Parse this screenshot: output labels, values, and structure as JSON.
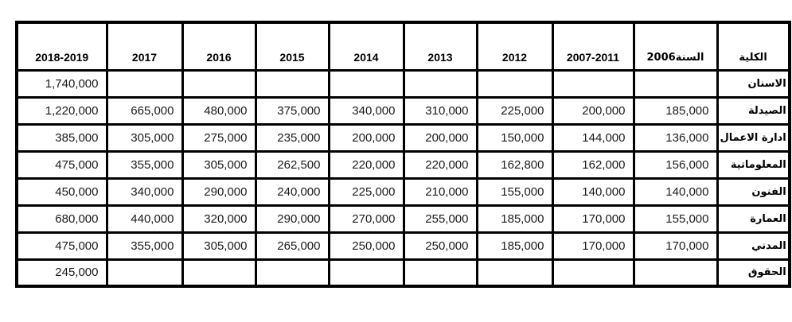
{
  "table": {
    "description_columns_note": "columns listed left-to-right as rendered",
    "header": [
      {
        "label": "2018-2019",
        "rtl": false
      },
      {
        "label": "2017",
        "rtl": false
      },
      {
        "label": "2016",
        "rtl": false
      },
      {
        "label": "2015",
        "rtl": false
      },
      {
        "label": "2014",
        "rtl": false
      },
      {
        "label": "2013",
        "rtl": false
      },
      {
        "label": "2012",
        "rtl": false
      },
      {
        "label": "2007-2011",
        "rtl": false
      },
      {
        "label": "السنة2006",
        "rtl": true
      },
      {
        "label": "الكلية",
        "rtl": true
      }
    ],
    "rows": [
      {
        "college": "الاسنان",
        "values": [
          "1,740,000",
          "",
          "",
          "",
          "",
          "",
          "",
          "",
          ""
        ]
      },
      {
        "college": "الصيدلة",
        "values": [
          "1,220,000",
          "665,000",
          "480,000",
          "375,000",
          "340,000",
          "310,000",
          "225,000",
          "200,000",
          "185,000"
        ]
      },
      {
        "college": "ادارة الاعمال",
        "values": [
          "385,000",
          "305,000",
          "275,000",
          "235,000",
          "200,000",
          "200,000",
          "150,000",
          "144,000",
          "136,000"
        ]
      },
      {
        "college": "المعلوماتية",
        "values": [
          "475,000",
          "355,000",
          "305,000",
          "262,500",
          "220,000",
          "220,000",
          "162,800",
          "162,000",
          "156,000"
        ]
      },
      {
        "college": "الفنون",
        "values": [
          "450,000",
          "340,000",
          "290,000",
          "240,000",
          "225,000",
          "210,000",
          "155,000",
          "140,000",
          "140,000"
        ]
      },
      {
        "college": "العمارة",
        "values": [
          "680,000",
          "440,000",
          "320,000",
          "290,000",
          "270,000",
          "255,000",
          "185,000",
          "170,000",
          "155,000"
        ]
      },
      {
        "college": "المدني",
        "values": [
          "475,000",
          "355,000",
          "305,000",
          "265,000",
          "250,000",
          "250,000",
          "185,000",
          "170,000",
          "170,000"
        ]
      },
      {
        "college": "الحقوق",
        "values": [
          "245,000",
          "",
          "",
          "",
          "",
          "",
          "",
          "",
          ""
        ]
      }
    ],
    "colors": {
      "border": "#000000",
      "header_text": "#000000",
      "value_text": "#1a1a1a",
      "background": "#ffffff"
    }
  }
}
